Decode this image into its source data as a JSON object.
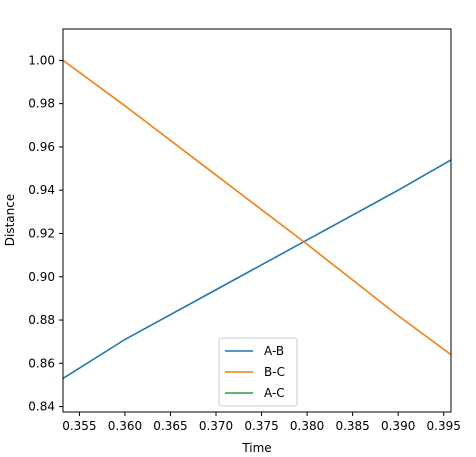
{
  "chart_data": {
    "type": "line",
    "xlabel": "Time",
    "ylabel": "Distance",
    "xlim": [
      0.3532,
      0.3958
    ],
    "ylim": [
      0.8375,
      1.0145
    ],
    "xticks": [
      0.355,
      0.36,
      0.365,
      0.37,
      0.375,
      0.38,
      0.385,
      0.39,
      0.395
    ],
    "xtick_labels": [
      "0.355",
      "0.360",
      "0.365",
      "0.370",
      "0.375",
      "0.380",
      "0.385",
      "0.390",
      "0.395"
    ],
    "yticks": [
      0.84,
      0.86,
      0.88,
      0.9,
      0.92,
      0.94,
      0.96,
      0.98,
      1.0
    ],
    "ytick_labels": [
      "0.84",
      "0.86",
      "0.88",
      "0.90",
      "0.92",
      "0.94",
      "0.96",
      "0.98",
      "1.00"
    ],
    "grid": false,
    "legend_position": "lower-center",
    "series": [
      {
        "name": "A-B",
        "color": "#1f77b4",
        "x": [
          0.3532,
          0.36,
          0.37,
          0.38,
          0.39,
          0.3958
        ],
        "y": [
          0.853,
          0.871,
          0.894,
          0.917,
          0.94,
          0.954
        ]
      },
      {
        "name": "B-C",
        "color": "#ff7f0e",
        "x": [
          0.3532,
          0.36,
          0.37,
          0.38,
          0.39,
          0.3958
        ],
        "y": [
          1.0,
          0.979,
          0.947,
          0.915,
          0.882,
          0.864
        ]
      },
      {
        "name": "A-C",
        "color": "#2ca02c",
        "x": [],
        "y": []
      }
    ]
  }
}
